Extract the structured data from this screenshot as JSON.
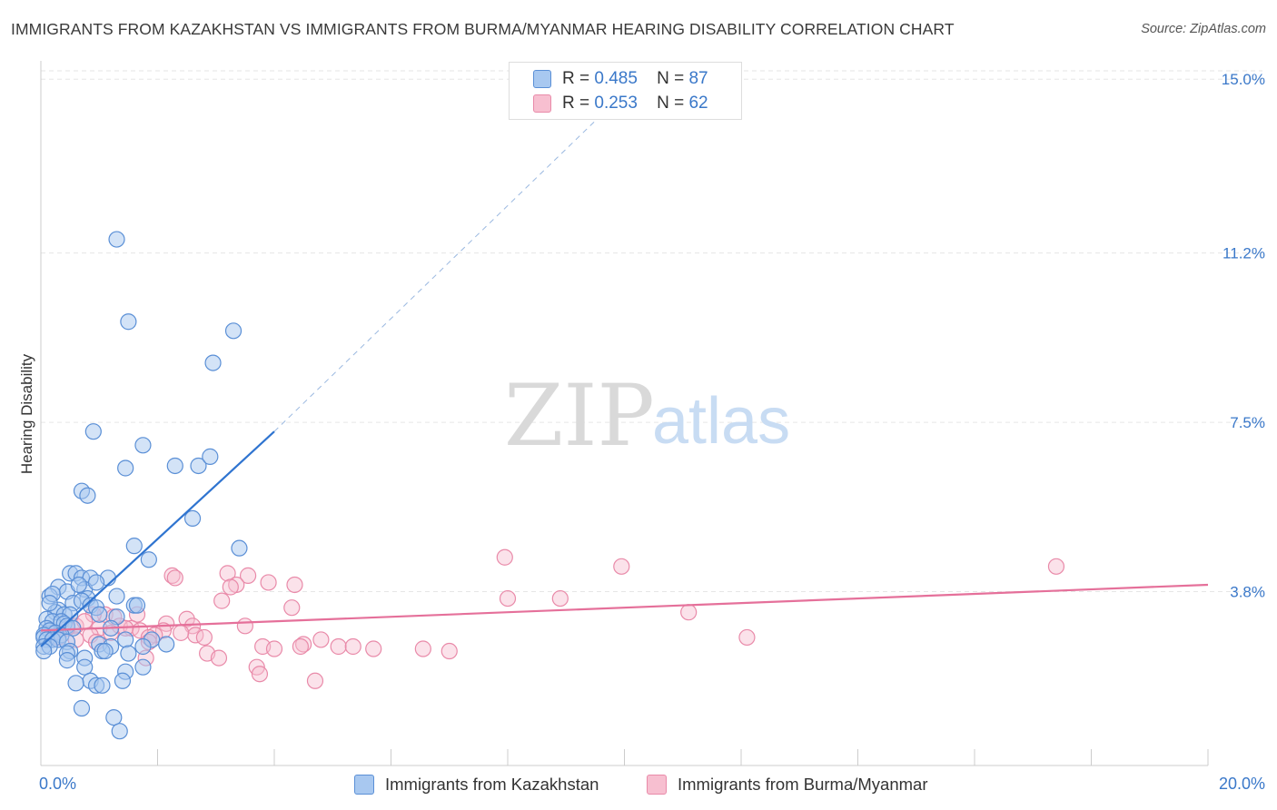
{
  "title": "IMMIGRANTS FROM KAZAKHSTAN VS IMMIGRANTS FROM BURMA/MYANMAR HEARING DISABILITY CORRELATION CHART",
  "source": "Source: ZipAtlas.com",
  "watermark": {
    "zip": "ZIP",
    "atlas": "atlas"
  },
  "legend": {
    "rows": [
      {
        "r_label": "R =",
        "r_value": "0.485",
        "n_label": "N =",
        "n_value": "87"
      },
      {
        "r_label": "R =",
        "r_value": "0.253",
        "n_label": "N =",
        "n_value": "62"
      }
    ]
  },
  "bottom_legend": {
    "kazakhstan": "Immigrants from Kazakhstan",
    "burma": "Immigrants from Burma/Myanmar"
  },
  "colors": {
    "kazakhstan_fill": "#a8c8f0",
    "kazakhstan_stroke": "#5a8fd6",
    "kazakhstan_line": "#2f74d0",
    "burma_fill": "#f7bfd0",
    "burma_stroke": "#e98aa9",
    "burma_line": "#e5709a",
    "tick_label": "#3a78c9",
    "grid": "#e6e6e6"
  },
  "chart_data": {
    "type": "scatter",
    "title": "IMMIGRANTS FROM KAZAKHSTAN VS IMMIGRANTS FROM BURMA/MYANMAR HEARING DISABILITY CORRELATION CHART",
    "xlabel": "",
    "ylabel": "Hearing Disability",
    "xlim": [
      0,
      20
    ],
    "ylim": [
      0,
      15.5
    ],
    "x_tick_labels": [
      "0.0%",
      "20.0%"
    ],
    "y_ticks": [
      3.8,
      7.5,
      11.2,
      15.0
    ],
    "y_tick_labels": [
      "3.8%",
      "7.5%",
      "11.2%",
      "15.0%"
    ],
    "grid": true,
    "legend_position": "top-center",
    "series": [
      {
        "name": "Immigrants from Kazakhstan",
        "r": 0.485,
        "n": 87,
        "trend": {
          "x": [
            0.0,
            4.0
          ],
          "y": [
            2.6,
            7.3
          ],
          "extended_x": [
            4.0,
            10.4
          ],
          "extended_y": [
            7.3,
            15.2
          ]
        },
        "points": [
          [
            1.3,
            11.5
          ],
          [
            1.5,
            9.7
          ],
          [
            3.3,
            9.5
          ],
          [
            2.95,
            8.8
          ],
          [
            0.9,
            7.3
          ],
          [
            1.75,
            7.0
          ],
          [
            1.45,
            6.5
          ],
          [
            2.3,
            6.55
          ],
          [
            2.7,
            6.55
          ],
          [
            2.9,
            6.75
          ],
          [
            0.7,
            6.0
          ],
          [
            0.8,
            5.9
          ],
          [
            2.6,
            5.4
          ],
          [
            1.6,
            4.8
          ],
          [
            3.4,
            4.75
          ],
          [
            1.85,
            4.5
          ],
          [
            0.5,
            4.2
          ],
          [
            0.6,
            4.2
          ],
          [
            0.7,
            4.1
          ],
          [
            0.85,
            4.1
          ],
          [
            1.15,
            4.1
          ],
          [
            0.3,
            3.9
          ],
          [
            0.75,
            3.85
          ],
          [
            0.95,
            4.0
          ],
          [
            0.45,
            3.8
          ],
          [
            0.8,
            3.65
          ],
          [
            0.15,
            3.7
          ],
          [
            0.2,
            3.75
          ],
          [
            1.3,
            3.7
          ],
          [
            0.55,
            3.55
          ],
          [
            0.7,
            3.6
          ],
          [
            1.6,
            3.5
          ],
          [
            0.85,
            3.5
          ],
          [
            0.95,
            3.45
          ],
          [
            0.3,
            3.4
          ],
          [
            0.25,
            3.35
          ],
          [
            0.4,
            3.3
          ],
          [
            0.5,
            3.3
          ],
          [
            1.0,
            3.3
          ],
          [
            1.3,
            3.25
          ],
          [
            0.1,
            3.2
          ],
          [
            0.2,
            3.15
          ],
          [
            0.35,
            3.15
          ],
          [
            0.4,
            3.1
          ],
          [
            0.45,
            3.05
          ],
          [
            0.55,
            3.0
          ],
          [
            1.2,
            3.0
          ],
          [
            0.1,
            3.0
          ],
          [
            0.15,
            2.95
          ],
          [
            0.25,
            2.9
          ],
          [
            0.35,
            2.85
          ],
          [
            0.05,
            2.85
          ],
          [
            0.05,
            2.8
          ],
          [
            0.1,
            2.75
          ],
          [
            0.2,
            2.75
          ],
          [
            0.3,
            2.75
          ],
          [
            0.45,
            2.7
          ],
          [
            1.0,
            2.65
          ],
          [
            1.45,
            2.75
          ],
          [
            1.9,
            2.75
          ],
          [
            0.05,
            2.6
          ],
          [
            0.15,
            2.6
          ],
          [
            1.2,
            2.6
          ],
          [
            1.75,
            2.6
          ],
          [
            2.15,
            2.65
          ],
          [
            0.5,
            2.5
          ],
          [
            0.05,
            2.5
          ],
          [
            0.45,
            2.45
          ],
          [
            1.05,
            2.5
          ],
          [
            1.1,
            2.5
          ],
          [
            1.5,
            2.45
          ],
          [
            0.75,
            2.35
          ],
          [
            0.45,
            2.3
          ],
          [
            0.75,
            2.15
          ],
          [
            1.75,
            2.15
          ],
          [
            1.45,
            2.05
          ],
          [
            0.85,
            1.85
          ],
          [
            0.6,
            1.8
          ],
          [
            0.95,
            1.75
          ],
          [
            1.05,
            1.75
          ],
          [
            1.4,
            1.85
          ],
          [
            0.7,
            1.25
          ],
          [
            1.25,
            1.05
          ],
          [
            1.35,
            0.75
          ],
          [
            0.15,
            3.55
          ],
          [
            1.65,
            3.5
          ],
          [
            0.65,
            3.95
          ]
        ]
      },
      {
        "name": "Immigrants from Burma/Myanmar",
        "r": 0.253,
        "n": 62,
        "trend": {
          "x": [
            0.0,
            20.0
          ],
          "y": [
            2.95,
            3.95
          ]
        },
        "points": [
          [
            17.4,
            4.35
          ],
          [
            9.95,
            4.35
          ],
          [
            7.95,
            4.55
          ],
          [
            2.25,
            4.15
          ],
          [
            2.3,
            4.1
          ],
          [
            3.2,
            4.2
          ],
          [
            3.55,
            4.15
          ],
          [
            3.9,
            4.0
          ],
          [
            4.35,
            3.95
          ],
          [
            3.35,
            3.95
          ],
          [
            3.25,
            3.9
          ],
          [
            8.0,
            3.65
          ],
          [
            8.9,
            3.65
          ],
          [
            3.1,
            3.6
          ],
          [
            4.3,
            3.45
          ],
          [
            11.1,
            3.35
          ],
          [
            1.65,
            3.3
          ],
          [
            1.1,
            3.3
          ],
          [
            0.9,
            3.3
          ],
          [
            1.25,
            3.25
          ],
          [
            2.5,
            3.2
          ],
          [
            2.15,
            3.1
          ],
          [
            1.35,
            3.05
          ],
          [
            3.5,
            3.05
          ],
          [
            2.6,
            3.05
          ],
          [
            0.6,
            3.05
          ],
          [
            1.0,
            3.0
          ],
          [
            1.55,
            3.0
          ],
          [
            2.1,
            2.95
          ],
          [
            1.7,
            2.95
          ],
          [
            1.2,
            2.9
          ],
          [
            0.85,
            2.85
          ],
          [
            1.95,
            2.85
          ],
          [
            2.65,
            2.85
          ],
          [
            2.8,
            2.8
          ],
          [
            1.85,
            2.8
          ],
          [
            0.3,
            2.8
          ],
          [
            0.6,
            2.75
          ],
          [
            0.95,
            2.7
          ],
          [
            1.85,
            2.7
          ],
          [
            12.1,
            2.8
          ],
          [
            4.8,
            2.75
          ],
          [
            4.5,
            2.65
          ],
          [
            3.8,
            2.6
          ],
          [
            4.0,
            2.55
          ],
          [
            4.45,
            2.6
          ],
          [
            5.1,
            2.6
          ],
          [
            6.55,
            2.55
          ],
          [
            7.0,
            2.5
          ],
          [
            5.7,
            2.55
          ],
          [
            5.35,
            2.6
          ],
          [
            2.85,
            2.45
          ],
          [
            3.05,
            2.35
          ],
          [
            1.8,
            2.35
          ],
          [
            3.7,
            2.15
          ],
          [
            3.75,
            2.0
          ],
          [
            4.7,
            1.85
          ],
          [
            0.2,
            2.9
          ],
          [
            0.45,
            3.0
          ],
          [
            1.45,
            3.0
          ],
          [
            2.4,
            2.9
          ],
          [
            0.75,
            3.15
          ]
        ]
      }
    ]
  }
}
